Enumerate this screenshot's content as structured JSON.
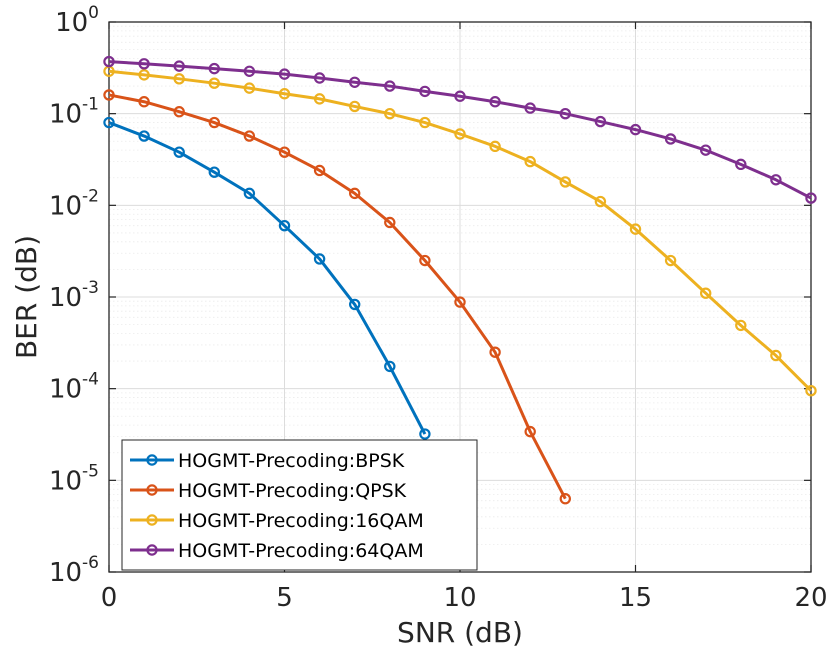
{
  "chart_data": {
    "type": "line",
    "xlabel": "SNR (dB)",
    "ylabel": "BER (dB)",
    "xlim": [
      0,
      20
    ],
    "ylim": [
      1e-06,
      1
    ],
    "y_scale": "log",
    "grid": true,
    "minor_grid": true,
    "legend_position": "bottom-left",
    "x_ticks": [
      "0",
      "5",
      "10",
      "15",
      "20"
    ],
    "y_ticks": [
      {
        "base": "10",
        "exp": "0"
      },
      {
        "base": "10",
        "exp": "-1"
      },
      {
        "base": "10",
        "exp": "-2"
      },
      {
        "base": "10",
        "exp": "-3"
      },
      {
        "base": "10",
        "exp": "-4"
      },
      {
        "base": "10",
        "exp": "-5"
      },
      {
        "base": "10",
        "exp": "-6"
      }
    ],
    "series": [
      {
        "name": "HOGMT-Precoding:BPSK",
        "color": "#0072BD",
        "marker": "circle",
        "x": [
          0,
          1,
          2,
          3,
          4,
          5,
          6,
          7,
          8,
          9
        ],
        "y": [
          0.08,
          0.057,
          0.038,
          0.023,
          0.0135,
          0.006,
          0.0026,
          0.00083,
          0.000175,
          3.2e-05
        ]
      },
      {
        "name": "HOGMT-Precoding:QPSK",
        "color": "#D95319",
        "marker": "circle",
        "x": [
          0,
          1,
          2,
          3,
          4,
          5,
          6,
          7,
          8,
          9,
          10,
          11,
          12,
          13
        ],
        "y": [
          0.16,
          0.135,
          0.105,
          0.08,
          0.057,
          0.038,
          0.024,
          0.0135,
          0.0065,
          0.0025,
          0.00088,
          0.00025,
          3.4e-05,
          6.3e-06
        ]
      },
      {
        "name": "HOGMT-Precoding:16QAM",
        "color": "#EDB120",
        "marker": "circle",
        "x": [
          0,
          1,
          2,
          3,
          4,
          5,
          6,
          7,
          8,
          9,
          10,
          11,
          12,
          13,
          14,
          15,
          16,
          17,
          18,
          19,
          20
        ],
        "y": [
          0.29,
          0.265,
          0.24,
          0.215,
          0.19,
          0.165,
          0.145,
          0.12,
          0.1,
          0.08,
          0.06,
          0.044,
          0.03,
          0.018,
          0.011,
          0.0055,
          0.0025,
          0.0011,
          0.00049,
          0.00023,
          9.5e-05
        ]
      },
      {
        "name": "HOGMT-Precoding:64QAM",
        "color": "#7E2F8E",
        "marker": "circle",
        "x": [
          0,
          1,
          2,
          3,
          4,
          5,
          6,
          7,
          8,
          9,
          10,
          11,
          12,
          13,
          14,
          15,
          16,
          17,
          18,
          19,
          20
        ],
        "y": [
          0.37,
          0.35,
          0.33,
          0.31,
          0.29,
          0.27,
          0.245,
          0.22,
          0.2,
          0.175,
          0.155,
          0.135,
          0.115,
          0.1,
          0.082,
          0.067,
          0.053,
          0.04,
          0.028,
          0.019,
          0.012
        ]
      }
    ]
  }
}
